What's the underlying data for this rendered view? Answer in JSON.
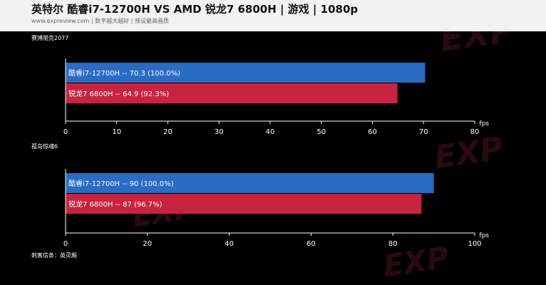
{
  "header": {
    "title": "英特尔 酷睿i7-12700H VS AMD 锐龙7 6800H | 游戏 | 1080p",
    "subtitle": "www.expreview.com | 数字越大越好 | 预设最高画质"
  },
  "watermark": "EXP",
  "colors": {
    "series_a": "#2a6bc4",
    "series_b": "#c8233f",
    "background": "#000000",
    "header_bg": "#f2f2f2"
  },
  "chart_data": [
    {
      "type": "bar",
      "orientation": "horizontal",
      "title": "赛博朋克2077",
      "unit": "fps",
      "xlim": [
        0,
        80
      ],
      "ticks": [
        "0",
        "10",
        "20",
        "30",
        "40",
        "50",
        "60",
        "70",
        "80"
      ],
      "bars": [
        {
          "value": 70.3,
          "label": "酷睿i7-12700H  --  70.3 (100.0%)",
          "series": "a"
        },
        {
          "value": 64.9,
          "label": "锐龙7 6800H  --  64.9 (92.3%)",
          "series": "b"
        }
      ]
    },
    {
      "type": "bar",
      "orientation": "horizontal",
      "title": "孤岛惊魂6",
      "unit": "fps",
      "xlim": [
        0,
        100
      ],
      "ticks": [
        "0",
        "20",
        "40",
        "60",
        "80",
        "100"
      ],
      "bars": [
        {
          "value": 90,
          "label": "酷睿i7-12700H  --  90 (100.0%)",
          "series": "a"
        },
        {
          "value": 87,
          "label": "锐龙7 6800H  --  87 (96.7%)",
          "series": "b"
        }
      ]
    },
    {
      "type": "bar",
      "orientation": "horizontal",
      "title": "刺客信条：英灵殿",
      "bars": []
    }
  ]
}
